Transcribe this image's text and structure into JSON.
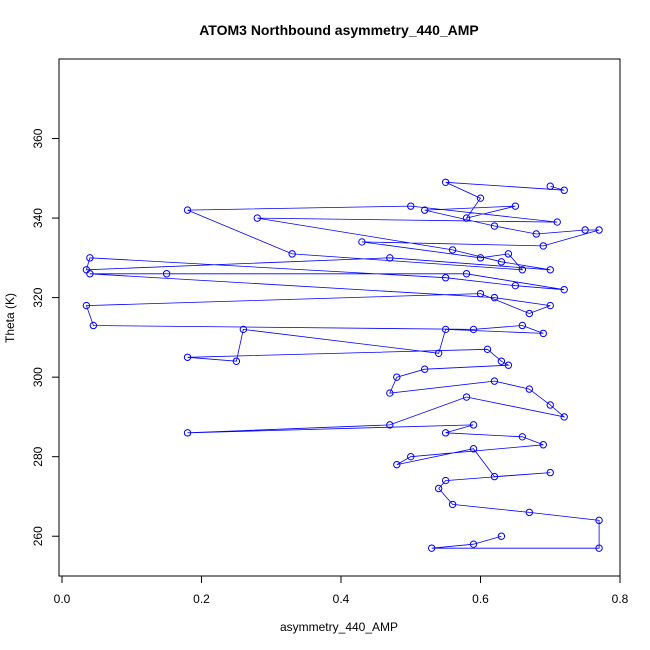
{
  "chart_data": {
    "type": "scatter",
    "title": "ATOM3 Northbound asymmetry_440_AMP",
    "xlabel": "asymmetry_440_AMP",
    "ylabel": "Theta (K)",
    "xlim": [
      0.0,
      0.8
    ],
    "ylim": [
      250,
      380
    ],
    "x_ticks": [
      0.0,
      0.2,
      0.4,
      0.6,
      0.8
    ],
    "x_tick_labels": [
      "0.0",
      "0.2",
      "0.4",
      "0.6",
      "0.8"
    ],
    "y_ticks": [
      260,
      280,
      300,
      320,
      340,
      360
    ],
    "y_tick_labels": [
      "260",
      "280",
      "300",
      "320",
      "340",
      "360"
    ],
    "grid": false,
    "legend": "none",
    "marker": "open-circle",
    "connected": true,
    "color": "#0000ff",
    "series": [
      {
        "x": [
          0.7,
          0.72,
          0.55,
          0.6,
          0.58,
          0.65,
          0.52,
          0.62,
          0.68,
          0.75,
          0.77,
          0.69,
          0.43,
          0.6,
          0.64,
          0.66,
          0.33,
          0.18,
          0.5,
          0.71,
          0.28,
          0.56,
          0.63,
          0.7,
          0.47,
          0.035,
          0.04,
          0.55,
          0.65,
          0.72,
          0.58,
          0.15,
          0.04,
          0.62,
          0.7,
          0.67,
          0.6,
          0.035,
          0.045,
          0.59,
          0.66,
          0.69,
          0.55,
          0.54,
          0.26,
          0.25,
          0.18,
          0.61,
          0.63,
          0.64,
          0.52,
          0.48,
          0.47,
          0.62,
          0.67,
          0.7,
          0.72,
          0.58,
          0.47,
          0.18,
          0.59,
          0.55,
          0.66,
          0.69,
          0.5,
          0.48,
          0.59,
          0.62,
          0.7,
          0.55,
          0.54,
          0.56,
          0.67,
          0.77,
          0.77,
          0.53,
          0.59,
          0.63
        ],
        "y": [
          348,
          347,
          349,
          345,
          340,
          343,
          342,
          338,
          336,
          337,
          337,
          333,
          334,
          330,
          331,
          327,
          331,
          342,
          343,
          339,
          340,
          332,
          329,
          327,
          330,
          327,
          330,
          325,
          323,
          322,
          326,
          326,
          326,
          320,
          318,
          316,
          321,
          318,
          313,
          312,
          313,
          311,
          312,
          306,
          312,
          304,
          305,
          307,
          304,
          303,
          302,
          300,
          296,
          299,
          297,
          293,
          290,
          295,
          288,
          286,
          288,
          286,
          285,
          283,
          280,
          278,
          282,
          275,
          276,
          274,
          272,
          268,
          266,
          264,
          257,
          257,
          258,
          260
        ]
      }
    ]
  }
}
